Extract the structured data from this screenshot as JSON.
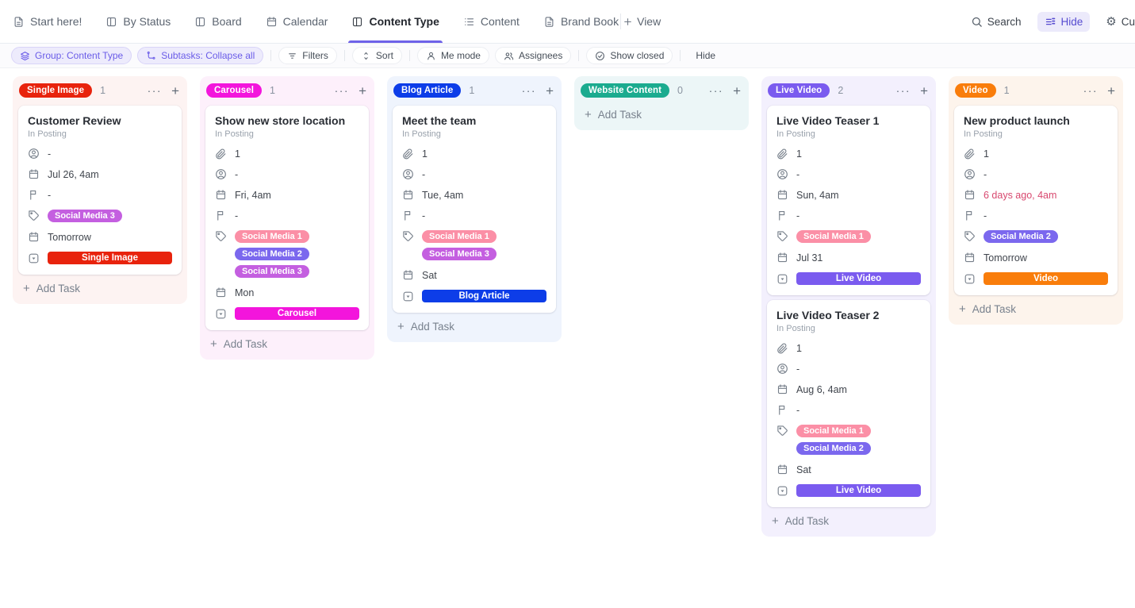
{
  "theme": {
    "accent": "#6e62e8",
    "overdue": "#d8486f"
  },
  "topbar": {
    "tabs": [
      {
        "label": "Start here!",
        "icon": "doc-icon",
        "active": false
      },
      {
        "label": "By Status",
        "icon": "board-icon",
        "active": false
      },
      {
        "label": "Board",
        "icon": "board-icon",
        "active": false
      },
      {
        "label": "Calendar",
        "icon": "calendar-icon",
        "active": false
      },
      {
        "label": "Content Type",
        "icon": "board-icon",
        "active": true
      },
      {
        "label": "Content",
        "icon": "list-icon",
        "active": false
      },
      {
        "label": "Brand Book",
        "icon": "doc-icon",
        "active": false
      }
    ],
    "add_view_label": "View",
    "search_label": "Search",
    "hide_label": "Hide",
    "customize_label": "Cu"
  },
  "toolbar": {
    "group_label": "Group: Content Type",
    "subtasks_label": "Subtasks: Collapse all",
    "filters_label": "Filters",
    "sort_label": "Sort",
    "me_mode_label": "Me mode",
    "assignees_label": "Assignees",
    "show_closed_label": "Show closed",
    "hide_label": "Hide"
  },
  "board": {
    "add_task_label": "Add Task",
    "columns": [
      {
        "title": "Single Image",
        "count": "1",
        "color": "#e8230d",
        "tint": "#fdf3f2",
        "cards": [
          {
            "title": "Customer Review",
            "subtitle": "In Posting",
            "rows": [
              {
                "type": "text",
                "icon": "assignee-icon",
                "text": "-"
              },
              {
                "type": "text",
                "icon": "calendar-icon",
                "text": "Jul 26, 4am"
              },
              {
                "type": "text",
                "icon": "flag-icon",
                "text": "-"
              },
              {
                "type": "tags",
                "icon": "tag-icon",
                "tags": [
                  {
                    "label": "Social Media 3",
                    "color": "#c45fe0"
                  }
                ]
              },
              {
                "type": "text",
                "icon": "calendar-icon",
                "text": "Tomorrow"
              },
              {
                "type": "pill",
                "icon": "status-icon",
                "label": "Single Image",
                "color": "#e8230d"
              }
            ]
          }
        ]
      },
      {
        "title": "Carousel",
        "count": "1",
        "color": "#f315dc",
        "tint": "#fdf0fb",
        "cards": [
          {
            "title": "Show new store location",
            "subtitle": "In Posting",
            "rows": [
              {
                "type": "text",
                "icon": "paperclip-icon",
                "text": "1"
              },
              {
                "type": "text",
                "icon": "assignee-icon",
                "text": "-"
              },
              {
                "type": "text",
                "icon": "calendar-icon",
                "text": "Fri, 4am"
              },
              {
                "type": "text",
                "icon": "flag-icon",
                "text": "-"
              },
              {
                "type": "tags",
                "icon": "tag-icon",
                "tags": [
                  {
                    "label": "Social Media 1",
                    "color": "#fb8fa6"
                  },
                  {
                    "label": "Social Media 2",
                    "color": "#7b68ee"
                  },
                  {
                    "label": "Social Media 3",
                    "color": "#c45fe0"
                  }
                ]
              },
              {
                "type": "text",
                "icon": "calendar-icon",
                "text": "Mon"
              },
              {
                "type": "pill",
                "icon": "status-icon",
                "label": "Carousel",
                "color": "#f315dc"
              }
            ]
          }
        ]
      },
      {
        "title": "Blog Article",
        "count": "1",
        "color": "#0d3de8",
        "tint": "#eff4fd",
        "cards": [
          {
            "title": "Meet the team",
            "subtitle": "In Posting",
            "rows": [
              {
                "type": "text",
                "icon": "paperclip-icon",
                "text": "1"
              },
              {
                "type": "text",
                "icon": "assignee-icon",
                "text": "-"
              },
              {
                "type": "text",
                "icon": "calendar-icon",
                "text": "Tue, 4am"
              },
              {
                "type": "text",
                "icon": "flag-icon",
                "text": "-"
              },
              {
                "type": "tags",
                "icon": "tag-icon",
                "tags": [
                  {
                    "label": "Social Media 1",
                    "color": "#fb8fa6"
                  },
                  {
                    "label": "Social Media 3",
                    "color": "#c45fe0"
                  }
                ]
              },
              {
                "type": "text",
                "icon": "calendar-icon",
                "text": "Sat"
              },
              {
                "type": "pill",
                "icon": "status-icon",
                "label": "Blog Article",
                "color": "#0d3de8"
              }
            ]
          }
        ]
      },
      {
        "title": "Website Content",
        "count": "0",
        "color": "#1bab8f",
        "tint": "#ecf6f7",
        "cards": []
      },
      {
        "title": "Live Video",
        "count": "2",
        "color": "#7a5bef",
        "tint": "#f3f0fd",
        "cards": [
          {
            "title": "Live Video Teaser 1",
            "subtitle": "In Posting",
            "rows": [
              {
                "type": "text",
                "icon": "paperclip-icon",
                "text": "1"
              },
              {
                "type": "text",
                "icon": "assignee-icon",
                "text": "-"
              },
              {
                "type": "text",
                "icon": "calendar-icon",
                "text": "Sun, 4am"
              },
              {
                "type": "text",
                "icon": "flag-icon",
                "text": "-"
              },
              {
                "type": "tags",
                "icon": "tag-icon",
                "tags": [
                  {
                    "label": "Social Media 1",
                    "color": "#fb8fa6"
                  }
                ]
              },
              {
                "type": "text",
                "icon": "calendar-icon",
                "text": "Jul 31"
              },
              {
                "type": "pill",
                "icon": "status-icon",
                "label": "Live Video",
                "color": "#7a5bef"
              }
            ]
          },
          {
            "title": "Live Video Teaser 2",
            "subtitle": "In Posting",
            "rows": [
              {
                "type": "text",
                "icon": "paperclip-icon",
                "text": "1"
              },
              {
                "type": "text",
                "icon": "assignee-icon",
                "text": "-"
              },
              {
                "type": "text",
                "icon": "calendar-icon",
                "text": "Aug 6, 4am"
              },
              {
                "type": "text",
                "icon": "flag-icon",
                "text": "-"
              },
              {
                "type": "tags",
                "icon": "tag-icon",
                "tags": [
                  {
                    "label": "Social Media 1",
                    "color": "#fb8fa6"
                  },
                  {
                    "label": "Social Media 2",
                    "color": "#7b68ee"
                  }
                ]
              },
              {
                "type": "text",
                "icon": "calendar-icon",
                "text": "Sat"
              },
              {
                "type": "pill",
                "icon": "status-icon",
                "label": "Live Video",
                "color": "#7a5bef"
              }
            ]
          }
        ]
      },
      {
        "title": "Video",
        "count": "1",
        "color": "#f97d0b",
        "tint": "#fdf4ec",
        "cards": [
          {
            "title": "New product launch",
            "subtitle": "In Posting",
            "rows": [
              {
                "type": "text",
                "icon": "paperclip-icon",
                "text": "1"
              },
              {
                "type": "text",
                "icon": "assignee-icon",
                "text": "-"
              },
              {
                "type": "text",
                "icon": "calendar-icon",
                "text": "6 days ago, 4am",
                "color": "#d8486f"
              },
              {
                "type": "text",
                "icon": "flag-icon",
                "text": "-"
              },
              {
                "type": "tags",
                "icon": "tag-icon",
                "tags": [
                  {
                    "label": "Social Media 2",
                    "color": "#7b68ee"
                  }
                ]
              },
              {
                "type": "text",
                "icon": "calendar-icon",
                "text": "Tomorrow"
              },
              {
                "type": "pill",
                "icon": "status-icon",
                "label": "Video",
                "color": "#f97d0b"
              }
            ]
          }
        ]
      }
    ]
  }
}
